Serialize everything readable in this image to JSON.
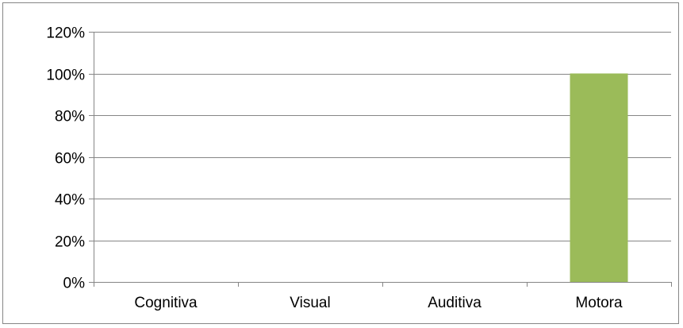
{
  "chart_data": {
    "type": "bar",
    "categories": [
      "Cognitiva",
      "Visual",
      "Auditiva",
      "Motora"
    ],
    "series": [
      {
        "values": [
          0,
          0,
          0,
          100
        ],
        "color": "#9BBB59"
      }
    ],
    "ylim": [
      0,
      120
    ],
    "yticks": [
      0,
      20,
      40,
      60,
      80,
      100,
      120
    ],
    "ytick_format": "percent",
    "grid": true,
    "legend": "none",
    "axis_color": "#868686",
    "grid_color": "#868686"
  }
}
